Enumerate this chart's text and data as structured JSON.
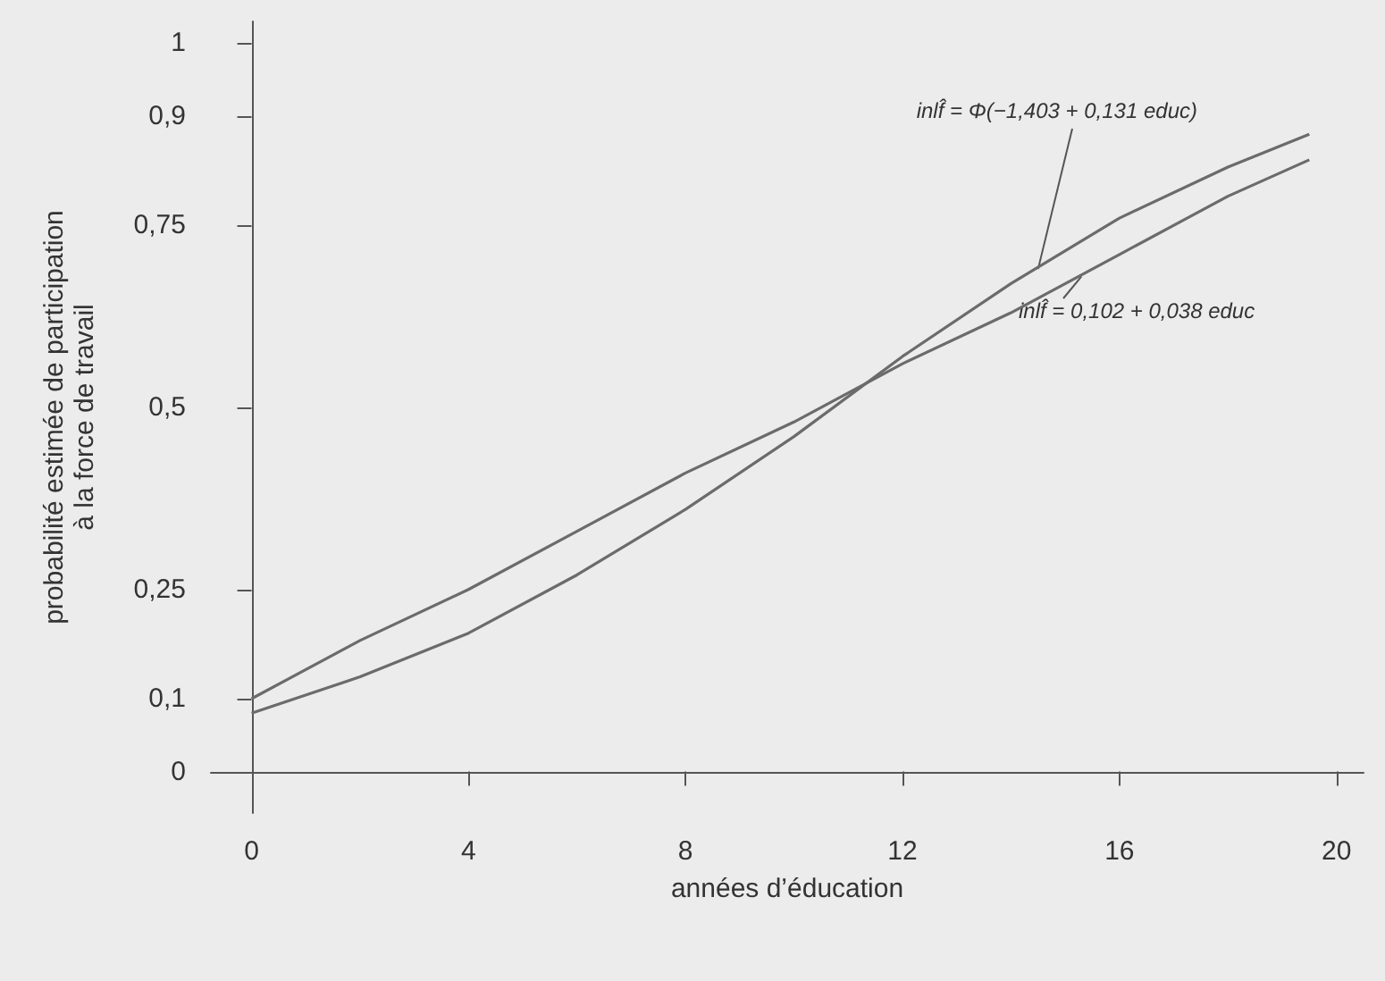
{
  "chart_data": {
    "type": "line",
    "xlabel": "années d’éducation",
    "ylabel": "probabilité estimée de participation\nà la force de travail",
    "xlim": [
      -0.75,
      20.5
    ],
    "xticks": [
      0,
      4,
      8,
      12,
      16,
      20
    ],
    "ylim": [
      -0.057,
      1.03
    ],
    "yticks": [
      {
        "value": 0,
        "label": "0"
      },
      {
        "value": 0.1,
        "label": "0,1"
      },
      {
        "value": 0.25,
        "label": "0,25"
      },
      {
        "value": 0.5,
        "label": "0,5"
      },
      {
        "value": 0.75,
        "label": "0,75"
      },
      {
        "value": 0.9,
        "label": "0,9"
      },
      {
        "value": 1,
        "label": "1"
      }
    ],
    "grid": false,
    "marker": "none",
    "line_style": "solid",
    "series": [
      {
        "color": "#6b6b6b",
        "x": [
          0,
          2,
          4,
          6,
          8,
          10,
          12,
          14,
          16,
          18,
          19.5
        ],
        "values": [
          0.08,
          0.13,
          0.19,
          0.27,
          0.36,
          0.46,
          0.57,
          0.67,
          0.76,
          0.83,
          0.875
        ]
      },
      {
        "color": "#6b6b6b",
        "x": [
          0,
          2,
          4,
          6,
          8,
          10,
          12,
          14,
          16,
          18,
          19.5
        ],
        "values": [
          0.1,
          0.18,
          0.25,
          0.33,
          0.41,
          0.48,
          0.56,
          0.63,
          0.71,
          0.79,
          0.84
        ]
      }
    ],
    "annotations": [
      {
        "text": "inlf̂ = Φ(−1,403 + 0,131 educ)",
        "x": 14.5,
        "y": 0.69
      },
      {
        "text": "inlf̂ = 0,102 + 0,038 educ",
        "x": 15.3,
        "y": 0.68
      }
    ]
  }
}
